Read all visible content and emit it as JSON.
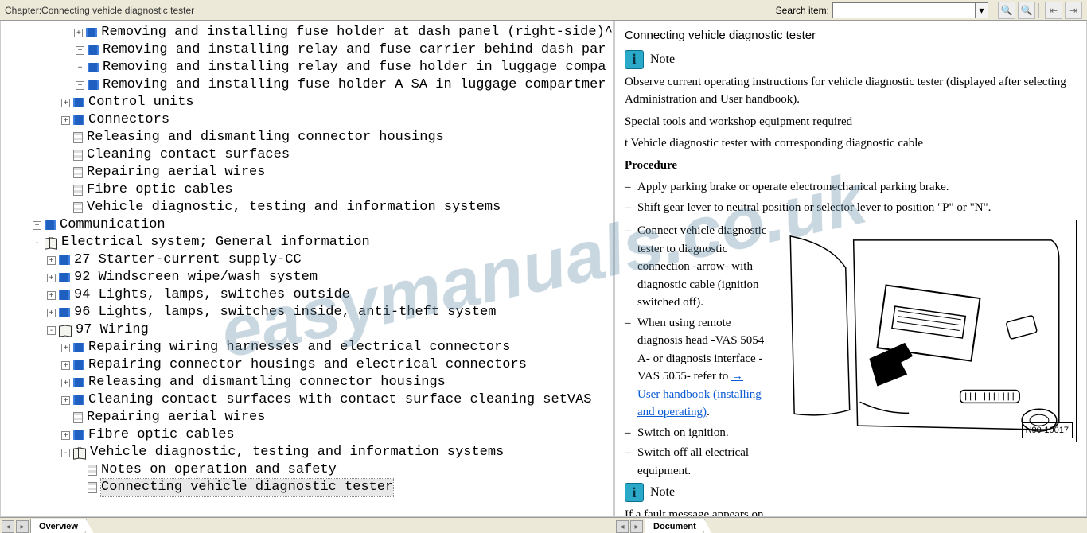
{
  "toolbar": {
    "chapter_prefix": "Chapter:",
    "chapter_title": "Connecting vehicle diagnostic tester",
    "search_label": "Search item:",
    "search_value": ""
  },
  "tabs": {
    "left": "Overview",
    "right": "Document"
  },
  "watermark": "easymanuals.co.uk",
  "tree": [
    {
      "d": 5,
      "e": "+",
      "i": "book",
      "t": "Removing and installing fuse holder at dash panel (right-side)^"
    },
    {
      "d": 5,
      "e": "+",
      "i": "book",
      "t": "Removing and installing relay and fuse carrier behind dash par"
    },
    {
      "d": 5,
      "e": "+",
      "i": "book",
      "t": "Removing and installing relay and fuse holder in luggage compa"
    },
    {
      "d": 5,
      "e": "+",
      "i": "book",
      "t": "Removing and installing fuse holder A SA in luggage compartmer"
    },
    {
      "d": 4,
      "e": "+",
      "i": "book",
      "t": "Control units"
    },
    {
      "d": 4,
      "e": "+",
      "i": "book",
      "t": "Connectors"
    },
    {
      "d": 4,
      "e": " ",
      "i": "page",
      "t": "Releasing and dismantling connector housings"
    },
    {
      "d": 4,
      "e": " ",
      "i": "page",
      "t": "Cleaning contact surfaces"
    },
    {
      "d": 4,
      "e": " ",
      "i": "page",
      "t": "Repairing aerial wires"
    },
    {
      "d": 4,
      "e": " ",
      "i": "page",
      "t": "Fibre optic cables"
    },
    {
      "d": 4,
      "e": " ",
      "i": "page",
      "t": "Vehicle diagnostic, testing and information systems"
    },
    {
      "d": 2,
      "e": "+",
      "i": "book",
      "t": "Communication"
    },
    {
      "d": 2,
      "e": "-",
      "i": "open",
      "t": "Electrical system; General information"
    },
    {
      "d": 3,
      "e": "+",
      "i": "book",
      "t": "27 Starter-current supply-CC"
    },
    {
      "d": 3,
      "e": "+",
      "i": "book",
      "t": "92 Windscreen wipe/wash system"
    },
    {
      "d": 3,
      "e": "+",
      "i": "book",
      "t": "94 Lights, lamps, switches outside"
    },
    {
      "d": 3,
      "e": "+",
      "i": "book",
      "t": "96 Lights, lamps, switches inside, anti-theft system"
    },
    {
      "d": 3,
      "e": "-",
      "i": "open",
      "t": "97 Wiring"
    },
    {
      "d": 4,
      "e": "+",
      "i": "book",
      "t": "Repairing wiring harnesses and electrical connectors"
    },
    {
      "d": 4,
      "e": "+",
      "i": "book",
      "t": "Repairing connector housings and electrical connectors"
    },
    {
      "d": 4,
      "e": "+",
      "i": "book",
      "t": "Releasing and dismantling connector housings"
    },
    {
      "d": 4,
      "e": "+",
      "i": "book",
      "t": "Cleaning contact surfaces with contact surface cleaning setVAS "
    },
    {
      "d": 4,
      "e": " ",
      "i": "page",
      "t": "Repairing aerial wires"
    },
    {
      "d": 4,
      "e": "+",
      "i": "book",
      "t": "Fibre optic cables"
    },
    {
      "d": 4,
      "e": "-",
      "i": "open",
      "t": "Vehicle diagnostic, testing and information systems"
    },
    {
      "d": 5,
      "e": " ",
      "i": "page",
      "t": "Notes on operation and safety"
    },
    {
      "d": 5,
      "e": " ",
      "i": "page",
      "t": "Connecting vehicle diagnostic tester",
      "sel": true
    }
  ],
  "doc": {
    "title": "Connecting vehicle diagnostic tester",
    "note_label": "Note",
    "note_text": "Observe current operating instructions for vehicle diagnostic tester (displayed after selecting Administration and User handbook).",
    "tools_head": "Special tools and workshop equipment required",
    "tools_line": "t  Vehicle diagnostic tester with corresponding diagnostic cable",
    "proc_head": "Procedure",
    "steps": [
      "Apply parking brake or operate electromechanical parking brake.",
      "Shift gear lever to neutral position or selector lever to position \"P\" or \"N\"."
    ],
    "step_connect": "Connect vehicle diagnostic tester to diagnostic connection -arrow- with diagnostic cable (ignition switched off).",
    "step_vas_pre": "When using remote diagnosis head -VAS 5054 A- or diagnosis interface -VAS 5055- refer to ",
    "step_vas_link": "→  User handbook (installing and operating)",
    "step_ignition": "Switch on ignition.",
    "step_switchoff": "Switch off all electrical equipment.",
    "note2_label": "Note",
    "fault_text": "If a fault message appears on the screen of the vehicle",
    "fig_id": "N90-10017"
  }
}
